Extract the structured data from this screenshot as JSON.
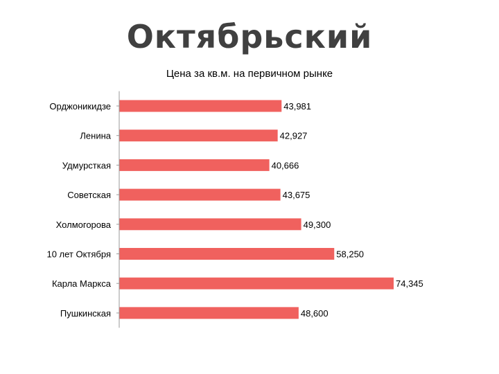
{
  "page": {
    "title": "Октябрьский"
  },
  "chart_data": {
    "type": "bar",
    "orientation": "horizontal",
    "title": "Цена за кв.м.  на первичном рынке",
    "xlabel": "",
    "ylabel": "",
    "categories": [
      "Орджоникидзе",
      "Ленина",
      "Удмурсткая",
      "Советская",
      "Холмогорова",
      "10 лет Октября",
      "Карла Маркса",
      "Пушкинская"
    ],
    "values": [
      43981,
      42927,
      40666,
      43675,
      49300,
      58250,
      74345,
      48600
    ],
    "value_labels": [
      "43,981",
      "42,927",
      "40,666",
      "43,675",
      "49,300",
      "58,250",
      "74,345",
      "48,600"
    ],
    "xlim": [
      0,
      74345
    ],
    "grid": false,
    "legend": "none",
    "bar_color": "#f0615e",
    "axis_color": "#999999"
  }
}
